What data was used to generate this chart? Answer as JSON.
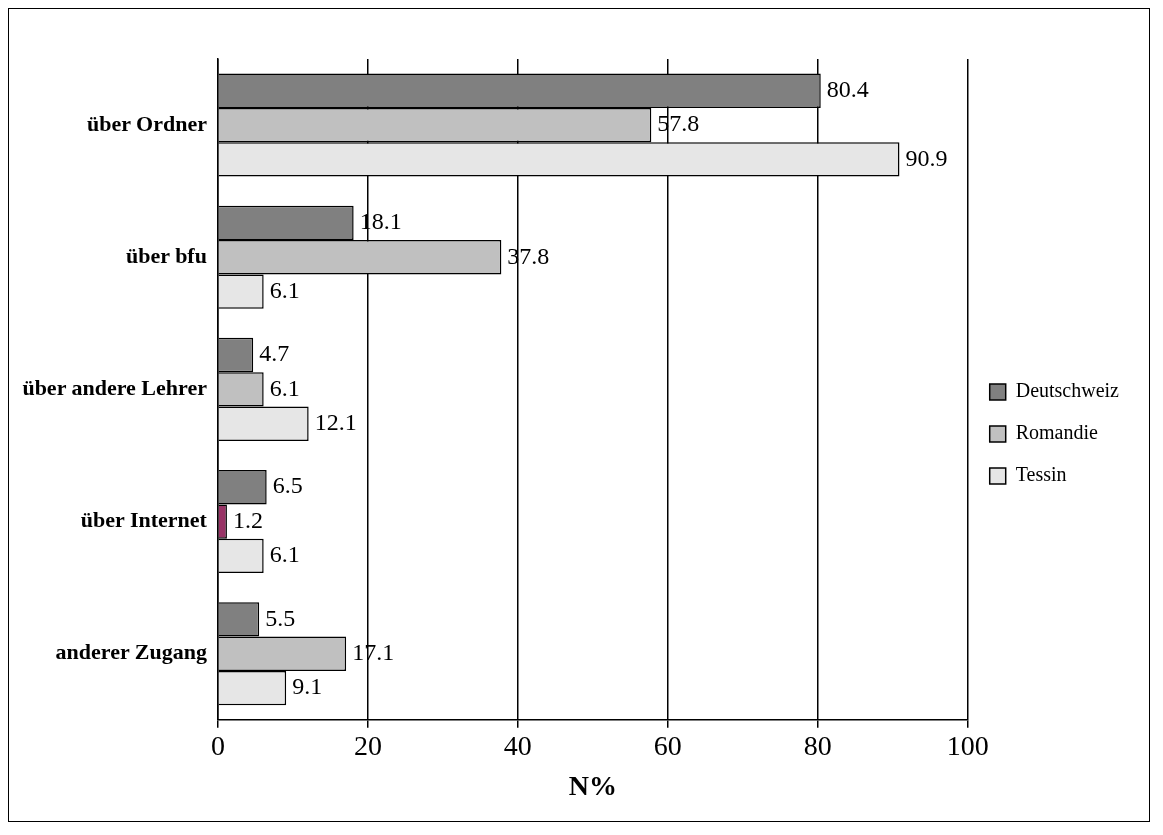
{
  "chart_data": {
    "type": "bar",
    "orientation": "horizontal",
    "xlabel": "N%",
    "categories": [
      "über Ordner",
      "über bfu",
      "über andere Lehrer",
      "über Internet",
      "anderer Zugang"
    ],
    "series": [
      {
        "name": "Deutschweiz",
        "color": "#808080",
        "values": [
          80.4,
          18.1,
          4.7,
          6.5,
          5.5
        ]
      },
      {
        "name": "Romandie",
        "color": "#c0c0c0",
        "colors": [
          "#c0c0c0",
          "#c0c0c0",
          "#c0c0c0",
          "#993366",
          "#c0c0c0"
        ],
        "values": [
          57.8,
          37.8,
          6.1,
          1.2,
          17.1
        ]
      },
      {
        "name": "Tessin",
        "color": "#e6e6e6",
        "values": [
          90.9,
          6.1,
          12.1,
          6.1,
          9.1
        ]
      }
    ],
    "xlim": [
      0,
      100
    ],
    "xticks": [
      0,
      20,
      40,
      60,
      80,
      100
    ],
    "grid": "x",
    "legend": "right",
    "data_labels": true
  }
}
